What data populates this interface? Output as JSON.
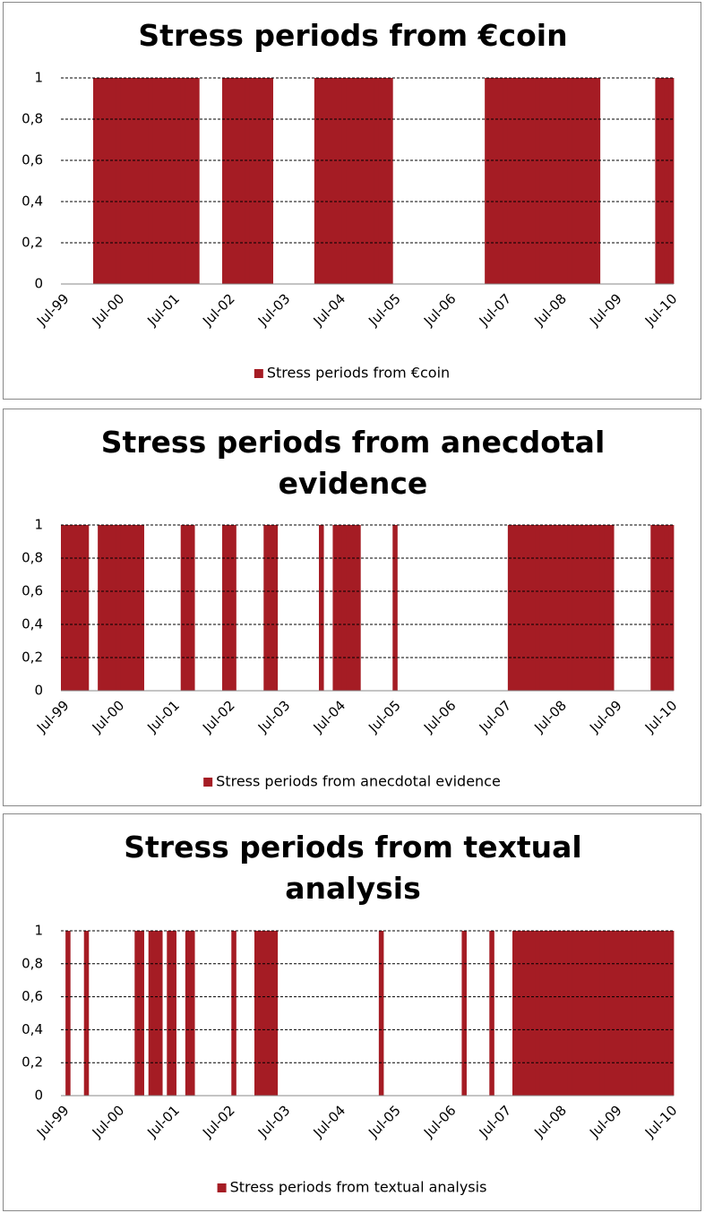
{
  "chart_data": [
    {
      "type": "bar",
      "title": "Stress periods from €coin",
      "categories": [
        "Jul-99",
        null,
        null,
        null,
        null,
        null,
        null,
        null,
        null,
        null,
        null,
        null,
        "Jul-00",
        null,
        null,
        null,
        null,
        null,
        null,
        null,
        null,
        null,
        null,
        null,
        "Jul-01",
        null,
        null,
        null,
        null,
        null,
        null,
        null,
        null,
        null,
        null,
        null,
        "Jul-02",
        null,
        null,
        null,
        null,
        null,
        null,
        null,
        null,
        null,
        null,
        null,
        "Jul-03",
        null,
        null,
        null,
        null,
        null,
        null,
        null,
        null,
        null,
        null,
        null,
        "Jul-04",
        null,
        null,
        null,
        null,
        null,
        null,
        null,
        null,
        null,
        null,
        null,
        "Jul-05",
        null,
        null,
        null,
        null,
        null,
        null,
        null,
        null,
        null,
        null,
        null,
        "Jul-06",
        null,
        null,
        null,
        null,
        null,
        null,
        null,
        null,
        null,
        null,
        null,
        "Jul-07",
        null,
        null,
        null,
        null,
        null,
        null,
        null,
        null,
        null,
        null,
        null,
        "Jul-08",
        null,
        null,
        null,
        null,
        null,
        null,
        null,
        null,
        null,
        null,
        null,
        "Jul-09",
        null,
        null,
        null,
        null,
        null,
        null,
        null,
        null,
        null,
        null,
        null,
        "Jul-10"
      ],
      "series": [
        {
          "name": "Stress periods from €coin",
          "color": "#a51c24",
          "values": [
            0,
            0,
            0,
            0,
            0,
            0,
            0,
            1,
            1,
            1,
            1,
            1,
            1,
            1,
            1,
            1,
            1,
            1,
            1,
            1,
            1,
            1,
            1,
            1,
            1,
            1,
            1,
            1,
            1,
            1,
            0,
            0,
            0,
            0,
            0,
            1,
            1,
            1,
            1,
            1,
            1,
            1,
            1,
            1,
            1,
            1,
            0,
            0,
            0,
            0,
            0,
            0,
            0,
            0,
            0,
            1,
            1,
            1,
            1,
            1,
            1,
            1,
            1,
            1,
            1,
            1,
            1,
            1,
            1,
            1,
            1,
            1,
            0,
            0,
            0,
            0,
            0,
            0,
            0,
            0,
            0,
            0,
            0,
            0,
            0,
            0,
            0,
            0,
            0,
            0,
            0,
            0,
            1,
            1,
            1,
            1,
            1,
            1,
            1,
            1,
            1,
            1,
            1,
            1,
            1,
            1,
            1,
            1,
            1,
            1,
            1,
            1,
            1,
            1,
            1,
            1,
            1,
            0,
            0,
            0,
            0,
            0,
            0,
            0,
            0,
            0,
            0,
            0,
            0,
            1,
            1,
            1,
            1
          ]
        }
      ],
      "ylim": [
        0,
        1
      ],
      "yticks": [
        0,
        {
          "value": 0.2,
          "label": "0,2"
        },
        {
          "value": 0.4,
          "label": "0,4"
        },
        {
          "value": 0.6,
          "label": "0,6"
        },
        {
          "value": 0.8,
          "label": "0,8"
        },
        1
      ],
      "grid": true,
      "legend": "bottom"
    },
    {
      "type": "bar",
      "title": "Stress periods from anecdotal evidence",
      "categories": [
        "Jul-99",
        null,
        null,
        null,
        null,
        null,
        null,
        null,
        null,
        null,
        null,
        null,
        "Jul-00",
        null,
        null,
        null,
        null,
        null,
        null,
        null,
        null,
        null,
        null,
        null,
        "Jul-01",
        null,
        null,
        null,
        null,
        null,
        null,
        null,
        null,
        null,
        null,
        null,
        "Jul-02",
        null,
        null,
        null,
        null,
        null,
        null,
        null,
        null,
        null,
        null,
        null,
        "Jul-03",
        null,
        null,
        null,
        null,
        null,
        null,
        null,
        null,
        null,
        null,
        null,
        "Jul-04",
        null,
        null,
        null,
        null,
        null,
        null,
        null,
        null,
        null,
        null,
        null,
        "Jul-05",
        null,
        null,
        null,
        null,
        null,
        null,
        null,
        null,
        null,
        null,
        null,
        "Jul-06",
        null,
        null,
        null,
        null,
        null,
        null,
        null,
        null,
        null,
        null,
        null,
        "Jul-07",
        null,
        null,
        null,
        null,
        null,
        null,
        null,
        null,
        null,
        null,
        null,
        "Jul-08",
        null,
        null,
        null,
        null,
        null,
        null,
        null,
        null,
        null,
        null,
        null,
        "Jul-09",
        null,
        null,
        null,
        null,
        null,
        null,
        null,
        null,
        null,
        null,
        null,
        "Jul-10"
      ],
      "series": [
        {
          "name": "Stress periods from anecdotal evidence",
          "color": "#a51c24",
          "values": [
            1,
            1,
            1,
            1,
            1,
            1,
            0,
            0,
            1,
            1,
            1,
            1,
            1,
            1,
            1,
            1,
            1,
            1,
            0,
            0,
            0,
            0,
            0,
            0,
            0,
            0,
            1,
            1,
            1,
            0,
            0,
            0,
            0,
            0,
            0,
            1,
            1,
            1,
            0,
            0,
            0,
            0,
            0,
            0,
            1,
            1,
            1,
            0,
            0,
            0,
            0,
            0,
            0,
            0,
            0,
            0,
            1,
            0,
            0,
            1,
            1,
            1,
            1,
            1,
            1,
            0,
            0,
            0,
            0,
            0,
            0,
            0,
            1,
            0,
            0,
            0,
            0,
            0,
            0,
            0,
            0,
            0,
            0,
            0,
            0,
            0,
            0,
            0,
            0,
            0,
            0,
            0,
            0,
            0,
            0,
            0,
            0,
            1,
            1,
            1,
            1,
            1,
            1,
            1,
            1,
            1,
            1,
            1,
            1,
            1,
            1,
            1,
            1,
            1,
            1,
            1,
            1,
            1,
            1,
            1,
            0,
            0,
            0,
            0,
            0,
            0,
            0,
            0,
            1,
            1,
            1,
            1,
            1
          ]
        }
      ],
      "ylim": [
        0,
        1
      ],
      "yticks": [
        0,
        {
          "value": 0.2,
          "label": "0,2"
        },
        {
          "value": 0.4,
          "label": "0,4"
        },
        {
          "value": 0.6,
          "label": "0,6"
        },
        {
          "value": 0.8,
          "label": "0,8"
        },
        1
      ],
      "grid": true,
      "legend": "bottom"
    },
    {
      "type": "bar",
      "title": "Stress periods from textual analysis",
      "categories": [
        "Jul-99",
        null,
        null,
        null,
        null,
        null,
        null,
        null,
        null,
        null,
        null,
        null,
        "Jul-00",
        null,
        null,
        null,
        null,
        null,
        null,
        null,
        null,
        null,
        null,
        null,
        "Jul-01",
        null,
        null,
        null,
        null,
        null,
        null,
        null,
        null,
        null,
        null,
        null,
        "Jul-02",
        null,
        null,
        null,
        null,
        null,
        null,
        null,
        null,
        null,
        null,
        null,
        "Jul-03",
        null,
        null,
        null,
        null,
        null,
        null,
        null,
        null,
        null,
        null,
        null,
        "Jul-04",
        null,
        null,
        null,
        null,
        null,
        null,
        null,
        null,
        null,
        null,
        null,
        "Jul-05",
        null,
        null,
        null,
        null,
        null,
        null,
        null,
        null,
        null,
        null,
        null,
        "Jul-06",
        null,
        null,
        null,
        null,
        null,
        null,
        null,
        null,
        null,
        null,
        null,
        "Jul-07",
        null,
        null,
        null,
        null,
        null,
        null,
        null,
        null,
        null,
        null,
        null,
        "Jul-08",
        null,
        null,
        null,
        null,
        null,
        null,
        null,
        null,
        null,
        null,
        null,
        "Jul-09",
        null,
        null,
        null,
        null,
        null,
        null,
        null,
        null,
        null,
        null,
        null,
        "Jul-10"
      ],
      "series": [
        {
          "name": "Stress periods from textual analysis",
          "color": "#a51c24",
          "values": [
            0,
            1,
            0,
            0,
            0,
            1,
            0,
            0,
            0,
            0,
            0,
            0,
            0,
            0,
            0,
            0,
            1,
            1,
            0,
            1,
            1,
            1,
            0,
            1,
            1,
            0,
            0,
            1,
            1,
            0,
            0,
            0,
            0,
            0,
            0,
            0,
            0,
            1,
            0,
            0,
            0,
            0,
            1,
            1,
            1,
            1,
            1,
            0,
            0,
            0,
            0,
            0,
            0,
            0,
            0,
            0,
            0,
            0,
            0,
            0,
            0,
            0,
            0,
            0,
            0,
            0,
            0,
            0,
            0,
            1,
            0,
            0,
            0,
            0,
            0,
            0,
            0,
            0,
            0,
            0,
            0,
            0,
            0,
            0,
            0,
            0,
            0,
            1,
            0,
            0,
            0,
            0,
            0,
            1,
            0,
            0,
            0,
            0,
            1,
            1,
            1,
            1,
            1,
            1,
            1,
            1,
            1,
            1,
            1,
            1,
            1,
            1,
            1,
            1,
            1,
            1,
            1,
            1,
            1,
            1,
            1,
            1,
            1,
            1,
            1,
            1,
            1,
            1,
            1,
            1,
            1,
            1,
            1
          ]
        }
      ],
      "ylim": [
        0,
        1
      ],
      "yticks": [
        0,
        {
          "value": 0.2,
          "label": "0,2"
        },
        {
          "value": 0.4,
          "label": "0,4"
        },
        {
          "value": 0.6,
          "label": "0,6"
        },
        {
          "value": 0.8,
          "label": "0,8"
        },
        1
      ],
      "grid": true,
      "legend": "bottom"
    }
  ]
}
